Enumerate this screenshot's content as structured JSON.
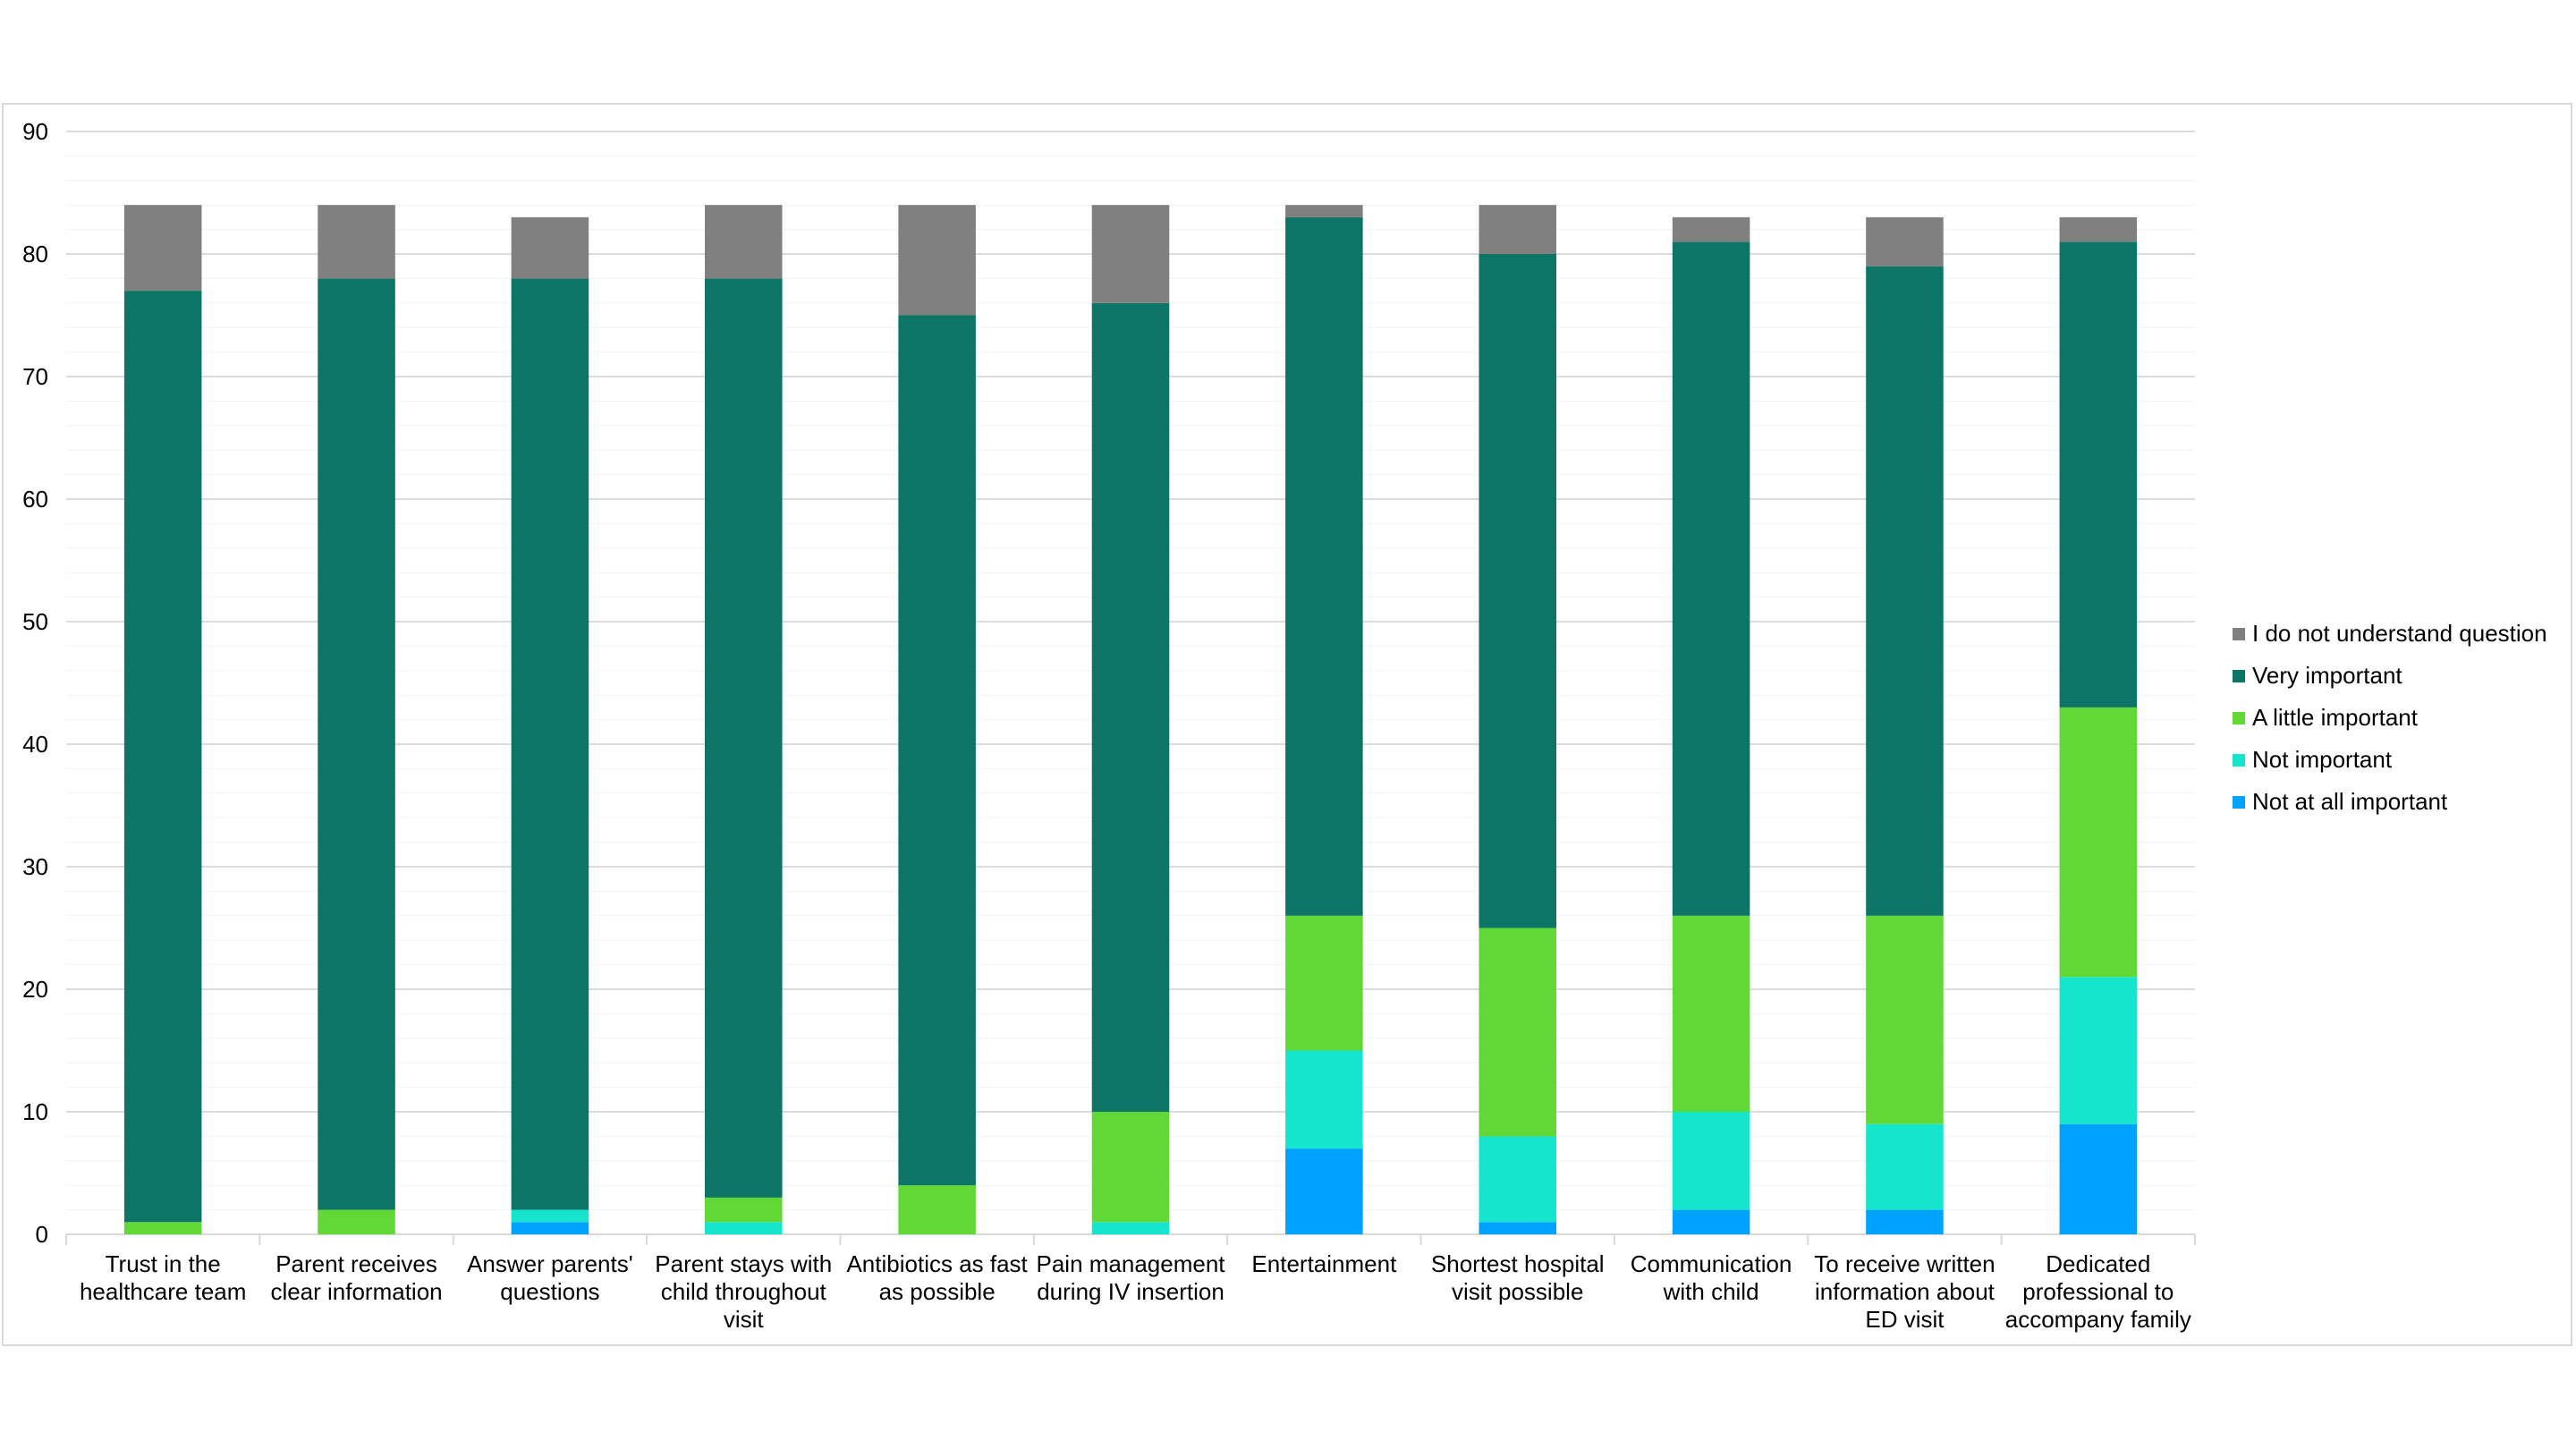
{
  "chart_data": {
    "type": "bar",
    "stacked": true,
    "title": "",
    "xlabel": "",
    "ylabel": "",
    "ylim": [
      0,
      90
    ],
    "yticks": [
      0,
      10,
      20,
      30,
      40,
      50,
      60,
      70,
      80,
      90
    ],
    "grid": true,
    "legend_position": "right",
    "categories": [
      [
        "Trust in the",
        "healthcare team"
      ],
      [
        "Parent receives",
        "clear information"
      ],
      [
        "Answer parents'",
        "questions"
      ],
      [
        "Parent stays with",
        "child throughout",
        "visit"
      ],
      [
        "Antibiotics as fast",
        "as possible"
      ],
      [
        "Pain management",
        "during IV insertion"
      ],
      [
        "Entertainment"
      ],
      [
        "Shortest hospital",
        "visit possible"
      ],
      [
        "Communication",
        "with child"
      ],
      [
        "To receive written",
        "information about",
        "ED visit"
      ],
      [
        "Dedicated",
        "professional to",
        "accompany family"
      ]
    ],
    "series": [
      {
        "name": "Not at all important",
        "color": "#00a2ff",
        "values": [
          0,
          0,
          1,
          0,
          0,
          0,
          7,
          1,
          2,
          2,
          9
        ]
      },
      {
        "name": "Not important",
        "color": "#16e5cd",
        "values": [
          0,
          0,
          1,
          1,
          0,
          1,
          8,
          7,
          8,
          7,
          12
        ]
      },
      {
        "name": "A little important",
        "color": "#61d836",
        "values": [
          1,
          2,
          0,
          2,
          4,
          9,
          11,
          17,
          16,
          17,
          22
        ]
      },
      {
        "name": "Very important",
        "color": "#0c7566",
        "values": [
          76,
          76,
          76,
          75,
          71,
          66,
          57,
          55,
          55,
          53,
          38
        ]
      },
      {
        "name": "I do not understand question",
        "color": "#808080",
        "values": [
          7,
          6,
          5,
          6,
          9,
          8,
          1,
          4,
          2,
          4,
          2
        ]
      }
    ],
    "legend_order": [
      "I do not understand question",
      "Very important",
      "A little important",
      "Not important",
      "Not at all important"
    ]
  }
}
